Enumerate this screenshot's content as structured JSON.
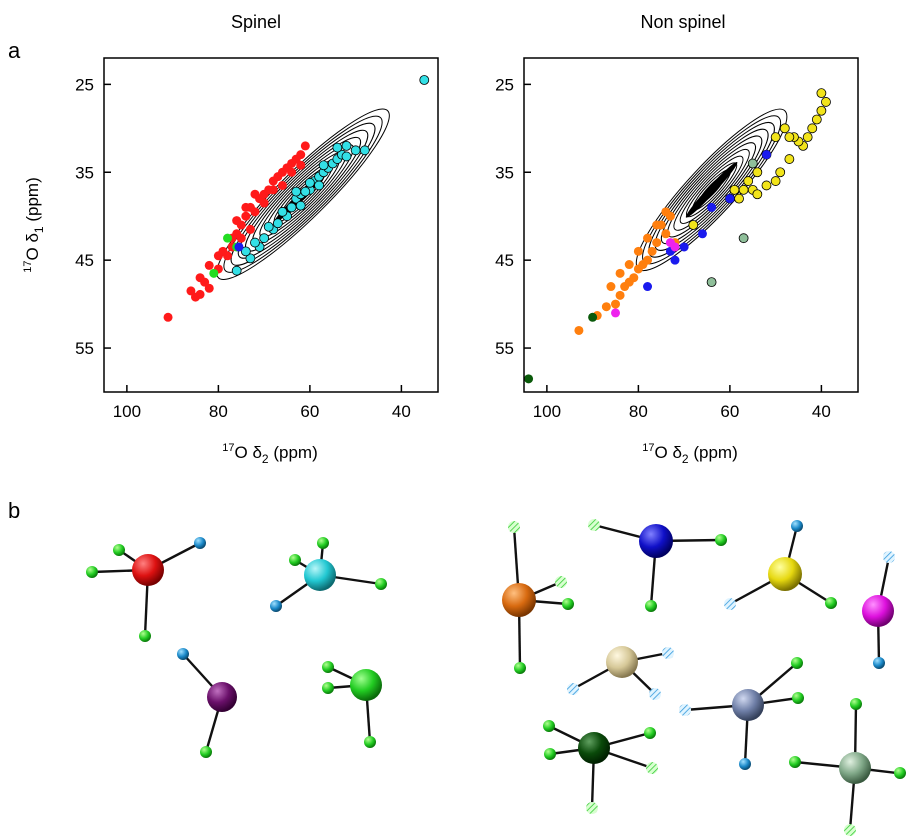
{
  "panel_labels": {
    "a": "a",
    "b": "b"
  },
  "colors": {
    "red": "#ff1a1a",
    "cyan": "#33e0e6",
    "green": "#22dd22",
    "blue": "#1a1aee",
    "orange": "#ff7f0e",
    "yellow": "#f2e41a",
    "magenta": "#ee22ee",
    "darkgreen": "#0a5a0a",
    "sage": "#8fbf9a",
    "black": "#000000"
  },
  "chart_data": [
    {
      "type": "scatter",
      "title": "Spinel",
      "xlabel": {
        "pre": "17",
        "main": "O δ",
        "sub": "2",
        "post": " (ppm)"
      },
      "ylabel": {
        "pre": "17",
        "main": "O δ",
        "sub": "1",
        "post": " (ppm)"
      },
      "xlim": [
        105,
        32
      ],
      "ylim": [
        60,
        22
      ],
      "x_ticks": [
        100,
        80,
        60,
        40
      ],
      "y_ticks": [
        25,
        35,
        45,
        55
      ],
      "contour": {
        "x_range": [
          80,
          43
        ],
        "y_range": [
          47,
          28
        ]
      },
      "series": [
        {
          "color": "red",
          "points": [
            [
              91,
              51.5
            ],
            [
              84,
              48.9
            ],
            [
              82,
              48.2
            ],
            [
              85,
              49.2
            ],
            [
              86,
              48.5
            ],
            [
              83,
              47.5
            ],
            [
              84,
              47
            ],
            [
              80,
              46
            ],
            [
              82,
              45.6
            ],
            [
              80,
              44.5
            ],
            [
              79,
              44
            ],
            [
              77,
              43.5
            ],
            [
              76,
              42
            ],
            [
              77,
              42.5
            ],
            [
              75,
              41
            ],
            [
              74,
              40
            ],
            [
              73,
              39
            ],
            [
              72,
              39.5
            ],
            [
              71,
              38
            ],
            [
              70,
              37.5
            ],
            [
              69,
              37
            ],
            [
              68,
              36
            ],
            [
              67,
              35.5
            ],
            [
              66,
              35
            ],
            [
              65,
              34.5
            ],
            [
              64,
              34
            ],
            [
              63,
              33.5
            ],
            [
              62,
              33
            ],
            [
              61,
              32
            ],
            [
              70,
              38.5
            ],
            [
              68,
              37
            ],
            [
              66,
              36.5
            ],
            [
              64,
              35
            ],
            [
              62,
              34.2
            ],
            [
              72,
              37.5
            ],
            [
              74,
              39
            ],
            [
              76,
              40.5
            ],
            [
              78,
              44.5
            ],
            [
              75,
              42.5
            ],
            [
              73,
              41.5
            ]
          ]
        },
        {
          "color": "cyan",
          "points": [
            [
              35,
              24.5
            ],
            [
              76,
              46.2
            ],
            [
              73,
              44.8
            ],
            [
              71,
              43.5
            ],
            [
              70,
              42.5
            ],
            [
              68,
              41.5
            ],
            [
              67,
              40.8
            ],
            [
              65,
              40
            ],
            [
              64,
              39
            ],
            [
              63,
              38
            ],
            [
              62,
              37.5
            ],
            [
              60,
              37
            ],
            [
              59,
              36
            ],
            [
              58,
              35.5
            ],
            [
              57,
              35
            ],
            [
              56,
              34.5
            ],
            [
              55,
              34
            ],
            [
              54,
              33.5
            ],
            [
              53,
              33
            ],
            [
              52,
              33.2
            ],
            [
              50,
              32.5
            ],
            [
              48,
              32.5
            ],
            [
              66,
              39.5
            ],
            [
              61,
              37.2
            ],
            [
              57,
              34.2
            ],
            [
              54,
              32.2
            ],
            [
              60,
              36.2
            ],
            [
              63,
              37.2
            ],
            [
              69,
              41.2
            ],
            [
              72,
              43
            ],
            [
              74,
              44
            ],
            [
              62,
              38.8
            ],
            [
              58,
              36.5
            ],
            [
              52,
              32
            ]
          ]
        },
        {
          "color": "green",
          "points": [
            [
              81,
              46.5
            ],
            [
              78,
              42.5
            ],
            [
              76,
              43.5
            ]
          ]
        },
        {
          "color": "blue",
          "points": [
            [
              75.5,
              43.5
            ]
          ]
        }
      ]
    },
    {
      "type": "scatter",
      "title": "Non spinel",
      "xlabel": {
        "pre": "17",
        "main": "O δ",
        "sub": "2",
        "post": " (ppm)"
      },
      "ylabel": {
        "pre": "",
        "main": "",
        "sub": "",
        "post": ""
      },
      "xlim": [
        105,
        32
      ],
      "ylim": [
        60,
        22
      ],
      "x_ticks": [
        100,
        80,
        60,
        40
      ],
      "y_ticks": [
        25,
        35,
        45,
        55
      ],
      "contour": {
        "x_range": [
          80,
          48
        ],
        "y_range": [
          46,
          28
        ]
      },
      "series": [
        {
          "color": "orange",
          "points": [
            [
              93,
              53
            ],
            [
              89,
              51.3
            ],
            [
              87,
              50.3
            ],
            [
              85,
              50
            ],
            [
              84,
              49
            ],
            [
              83,
              48
            ],
            [
              82,
              47.5
            ],
            [
              81,
              47
            ],
            [
              80,
              46
            ],
            [
              79,
              45.5
            ],
            [
              78,
              45
            ],
            [
              77,
              44
            ],
            [
              76,
              43
            ],
            [
              74,
              42
            ],
            [
              75,
              41
            ],
            [
              72,
              43
            ],
            [
              73,
              40
            ],
            [
              80,
              44
            ],
            [
              82,
              45.5
            ],
            [
              84,
              46.5
            ],
            [
              86,
              48
            ],
            [
              78,
              42.5
            ],
            [
              76,
              41
            ],
            [
              74,
              39.5
            ]
          ]
        },
        {
          "color": "yellow",
          "points": [
            [
              40,
              26
            ],
            [
              39,
              27
            ],
            [
              40,
              28
            ],
            [
              41,
              29
            ],
            [
              42,
              30
            ],
            [
              43,
              31
            ],
            [
              44,
              32
            ],
            [
              45,
              31.5
            ],
            [
              46,
              31
            ],
            [
              47,
              31
            ],
            [
              48,
              30
            ],
            [
              50,
              31
            ],
            [
              52,
              33
            ],
            [
              54,
              35
            ],
            [
              55,
              37
            ],
            [
              56,
              36
            ],
            [
              57,
              37
            ],
            [
              58,
              38
            ],
            [
              59,
              37
            ],
            [
              60,
              38
            ],
            [
              54,
              37.5
            ],
            [
              52,
              36.5
            ],
            [
              50,
              36
            ],
            [
              49,
              35
            ],
            [
              47,
              33.5
            ],
            [
              68,
              41
            ]
          ]
        },
        {
          "color": "blue",
          "points": [
            [
              78,
              48
            ],
            [
              73,
              44
            ],
            [
              70,
              43.5
            ],
            [
              66,
              42
            ],
            [
              72,
              45
            ],
            [
              60,
              38
            ],
            [
              52,
              33
            ],
            [
              64,
              39
            ]
          ]
        },
        {
          "color": "magenta",
          "points": [
            [
              85,
              51
            ],
            [
              73,
              43
            ],
            [
              72,
              43.5
            ]
          ]
        },
        {
          "color": "darkgreen",
          "points": [
            [
              104,
              58.5
            ],
            [
              90,
              51.5
            ]
          ]
        },
        {
          "color": "sage",
          "points": [
            [
              64,
              47.5
            ],
            [
              57,
              42.5
            ],
            [
              55,
              34
            ]
          ]
        }
      ]
    }
  ]
}
